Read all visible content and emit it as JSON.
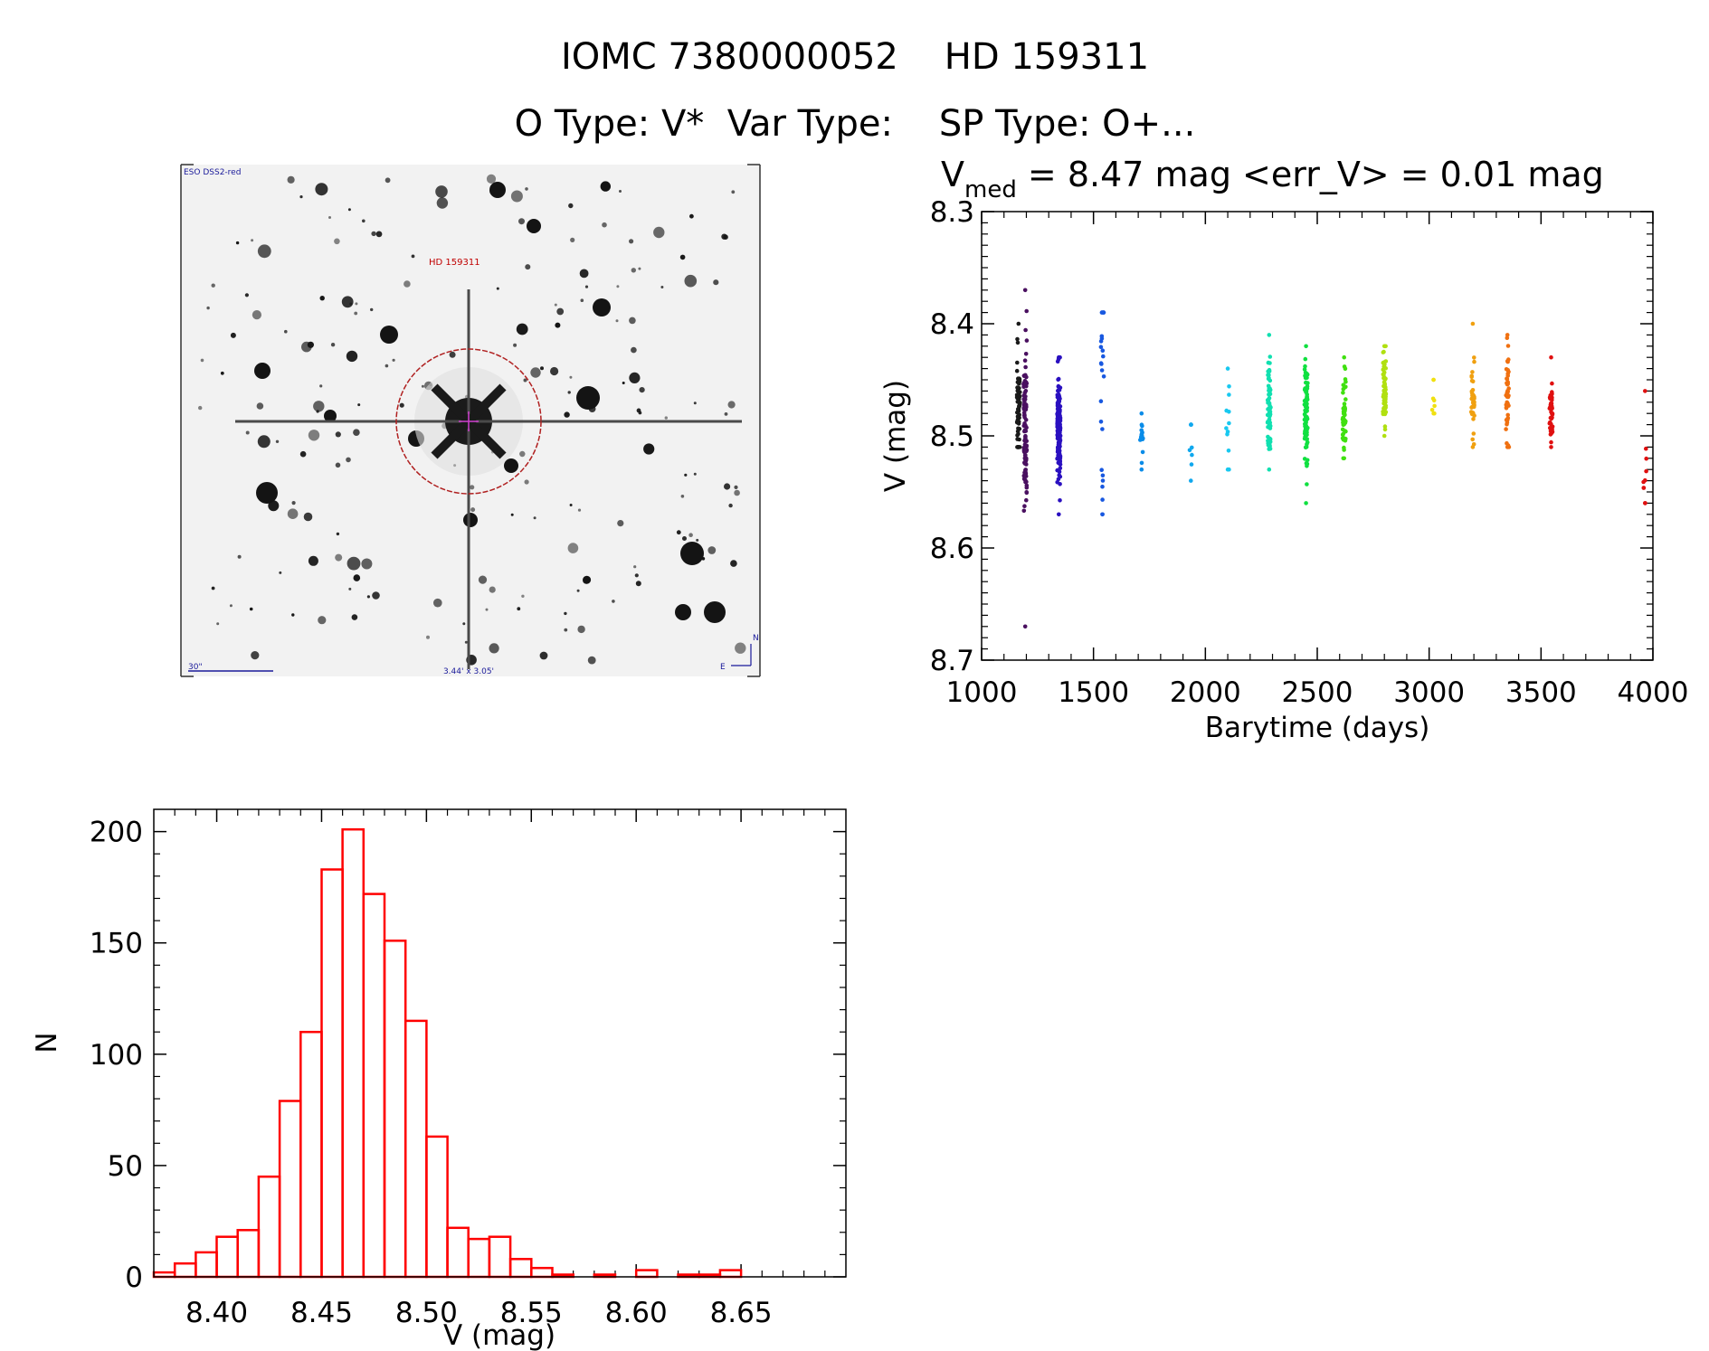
{
  "header": {
    "title_line1": "IOMC 7380000052    HD 159311",
    "title_line2": "O Type: V*  Var Type:    SP Type: O+..."
  },
  "finding_chart": {
    "survey_label": "ESO DSS2-red",
    "target_label": "HD 159311",
    "scale_label": "30\"",
    "fov_label": "3.44' x 3.05'",
    "north_label": "N",
    "east_label": "E",
    "colors": {
      "background": "#f0f0f0",
      "star": "#141414",
      "circle": "#b02020",
      "label_red": "#c00000",
      "label_blue": "#1a1a9a"
    }
  },
  "chart_data": [
    {
      "type": "scatter",
      "title_parts": {
        "v": "V",
        "sub": "med",
        "rest": " = 8.47 mag <err_V> = 0.01 mag"
      },
      "xlabel": "Barytime (days)",
      "ylabel": "V (mag)",
      "xlim": [
        1000,
        4000
      ],
      "ylim": [
        8.7,
        8.3
      ],
      "y_inverted": true,
      "x_ticks": [
        1000,
        1500,
        2000,
        2500,
        3000,
        3500,
        4000
      ],
      "y_ticks": [
        "8.3",
        "8.4",
        "8.5",
        "8.6",
        "8.7"
      ],
      "clusters": [
        {
          "x": 1165,
          "mean": 8.47,
          "sd": 0.022,
          "min": 8.4,
          "max": 8.51,
          "n": 55,
          "color": "#1a1a1a"
        },
        {
          "x": 1195,
          "mean": 8.49,
          "sd": 0.035,
          "min": 8.37,
          "max": 8.67,
          "n": 95,
          "color": "#4a1060"
        },
        {
          "x": 1345,
          "mean": 8.49,
          "sd": 0.022,
          "min": 8.43,
          "max": 8.57,
          "n": 170,
          "color": "#2a10c0"
        },
        {
          "x": 1540,
          "mean": 8.47,
          "sd": 0.055,
          "min": 8.39,
          "max": 8.57,
          "n": 22,
          "color": "#1858e0"
        },
        {
          "x": 1715,
          "mean": 8.5,
          "sd": 0.01,
          "min": 8.48,
          "max": 8.53,
          "n": 14,
          "color": "#0a8ce8"
        },
        {
          "x": 1935,
          "mean": 8.51,
          "sd": 0.02,
          "min": 8.49,
          "max": 8.54,
          "n": 6,
          "color": "#10a8ee"
        },
        {
          "x": 2100,
          "mean": 8.49,
          "sd": 0.02,
          "min": 8.44,
          "max": 8.53,
          "n": 10,
          "color": "#18c8f0"
        },
        {
          "x": 2285,
          "mean": 8.475,
          "sd": 0.022,
          "min": 8.41,
          "max": 8.53,
          "n": 65,
          "color": "#10e0b0"
        },
        {
          "x": 2450,
          "mean": 8.48,
          "sd": 0.02,
          "min": 8.42,
          "max": 8.56,
          "n": 85,
          "color": "#10e040"
        },
        {
          "x": 2620,
          "mean": 8.48,
          "sd": 0.02,
          "min": 8.43,
          "max": 8.52,
          "n": 45,
          "color": "#40e010"
        },
        {
          "x": 2800,
          "mean": 8.46,
          "sd": 0.02,
          "min": 8.42,
          "max": 8.5,
          "n": 60,
          "color": "#b0e010"
        },
        {
          "x": 3020,
          "mean": 8.47,
          "sd": 0.01,
          "min": 8.45,
          "max": 8.48,
          "n": 6,
          "color": "#f0e010"
        },
        {
          "x": 3195,
          "mean": 8.47,
          "sd": 0.02,
          "min": 8.4,
          "max": 8.51,
          "n": 35,
          "color": "#f0a010"
        },
        {
          "x": 3350,
          "mean": 8.465,
          "sd": 0.02,
          "min": 8.41,
          "max": 8.51,
          "n": 45,
          "color": "#f07010"
        },
        {
          "x": 3545,
          "mean": 8.48,
          "sd": 0.014,
          "min": 8.43,
          "max": 8.51,
          "n": 45,
          "color": "#e01010"
        },
        {
          "x": 3965,
          "mean": 8.5,
          "sd": 0.035,
          "min": 8.46,
          "max": 8.56,
          "n": 8,
          "color": "#e01010"
        }
      ]
    },
    {
      "type": "bar",
      "subtype": "histogram",
      "xlabel": "V (mag)",
      "ylabel": "N",
      "bin_width": 0.01,
      "bin_start": 8.37,
      "counts": [
        2,
        6,
        11,
        18,
        21,
        45,
        79,
        110,
        183,
        201,
        172,
        151,
        115,
        63,
        22,
        17,
        18,
        8,
        4,
        1,
        0,
        1,
        0,
        3,
        0,
        1,
        1,
        3
      ],
      "xlim": [
        8.37,
        8.7
      ],
      "ylim": [
        0,
        210
      ],
      "x_ticks": [
        "8.40",
        "8.45",
        "8.50",
        "8.55",
        "8.60",
        "8.65"
      ],
      "y_ticks": [
        "0",
        "50",
        "100",
        "150",
        "200"
      ],
      "bar_color": "#ff0000"
    }
  ]
}
